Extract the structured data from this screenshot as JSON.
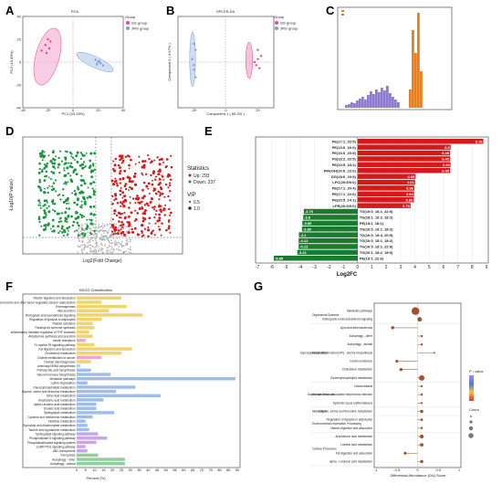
{
  "panels": {
    "a": {
      "label": "A",
      "title": "PCA",
      "xlabel": "PC1 (43.29%)",
      "ylabel": "PC2 (15.85%)",
      "legend_title": "Group",
      "legend": [
        "SG group",
        "JRG group"
      ],
      "colors": [
        "#e6499a",
        "#7b9fd4"
      ]
    },
    "b": {
      "label": "B",
      "title": "OPLDS-DA",
      "xlabel": "Component 1 ( 65.2% )",
      "ylabel": "Component 2 ( 4.67% )",
      "legend_title": "Group",
      "legend": [
        "SG group",
        "JRG group"
      ]
    },
    "c": {
      "label": "C"
    },
    "d": {
      "label": "D",
      "xlabel": "Log2(Fold Change)",
      "ylabel": "-Log10(P value)",
      "stats_title": "Statistics",
      "stats": [
        "Up: 293",
        "Down: 337"
      ],
      "vip_title": "VIP",
      "vip": [
        "0.5",
        "1.0"
      ],
      "colors": {
        "up": "#d7191c",
        "down": "#1a9641",
        "ns": "#b0b0b0"
      }
    },
    "e": {
      "label": "E",
      "xlabel": "Log2FC"
    },
    "f": {
      "label": "F",
      "title": "KEGG Classification",
      "xlabel": "Percent (%)"
    },
    "g": {
      "label": "G",
      "xlabel": "Differential Abundance (DA) Score",
      "legend_title": "P - value",
      "count_title": "Count"
    }
  },
  "chart_data": [
    {
      "panel": "A",
      "type": "scatter",
      "series": [
        {
          "name": "SG group",
          "x": [
            -25,
            -22,
            -20,
            -19,
            -18,
            -21
          ],
          "y": [
            10,
            15,
            20,
            12,
            18,
            8
          ]
        },
        {
          "name": "JRG group",
          "x": [
            18,
            20,
            22,
            24,
            21,
            19
          ],
          "y": [
            2,
            0,
            -1,
            -3,
            1,
            -2
          ]
        }
      ]
    },
    {
      "panel": "B",
      "type": "scatter",
      "series": [
        {
          "name": "SG group",
          "x": [
            18,
            20,
            21,
            22,
            19,
            20
          ],
          "y": [
            0,
            8,
            -4,
            4,
            -2,
            2
          ]
        },
        {
          "name": "JRG group",
          "x": [
            -19,
            -20,
            -21,
            -20,
            -19,
            -20
          ],
          "y": [
            8,
            -5,
            2,
            -2,
            -10,
            12
          ]
        }
      ]
    },
    {
      "panel": "E",
      "type": "bar",
      "xlim": [
        -7,
        9
      ],
      "xticks": [
        -7,
        -6,
        -5,
        -4,
        -3,
        -2,
        -1,
        0,
        1,
        2,
        3,
        4,
        5,
        6,
        7,
        8,
        9
      ],
      "categories": [
        "PE(17:1_20:5)",
        "PE(13:0_16:0)",
        "PE(16:0_20:5)",
        "PS(18:2_20:5)",
        "PE(20:5_18:2)",
        "PMeOH(16:0_22:6)",
        "DG(18:0_20:5)",
        "LPC(20:5/0:0)",
        "PE(17:1_20:4)",
        "PE(17:1_22:6)",
        "PE(20:5_14:1)",
        "LPE(20:5/0:0)",
        "TG(10:0_18:1_22:6)",
        "TG(18:1_18:2_18:2)",
        "PE(18:1_18:1)",
        "TG(16:0_18:1_18:2)",
        "TG(16:0_18:4_20:5)",
        "TG(16:0_18:1_18:2)",
        "TG(16:0_18:1_22:6)",
        "TG(20:1_18:2_18:0)",
        "PE(18:1_22:6)"
      ],
      "values": [
        8.78,
        6.5,
        6.45,
        6.45,
        6.49,
        6.45,
        4.05,
        4.01,
        3.96,
        3.94,
        3.92,
        3.7,
        -3.76,
        -3.8,
        -3.86,
        -3.89,
        -4.1,
        -4.12,
        -4.12,
        -4.21,
        -5.85
      ],
      "labels": [
        "8.78",
        "6.5",
        "6.45",
        "6.45",
        "6.49",
        "6.45",
        "4.05",
        "4.01",
        "3.96",
        "3.94",
        "3.92",
        "3.70",
        "-3.76",
        "-3.8",
        "-3.86",
        "-3.89",
        "-4.1",
        "-4.12",
        "-4.12",
        "-4.21",
        "-5.85"
      ]
    },
    {
      "panel": "F",
      "type": "bar",
      "xlim": [
        0,
        90
      ],
      "xticks": [
        0,
        5,
        10,
        15,
        20,
        25,
        30,
        35,
        40,
        45,
        50,
        55,
        60,
        65,
        70,
        75,
        80,
        85,
        90
      ],
      "categories": [
        "Vitamin digestion and absorption",
        "Endocrine and other factor-regulated calcium reabsorption",
        "Thermogenesis",
        "Bile secretion",
        "Retrograde endocannabinoid signaling",
        "Regulation of lipolysis in adipocytes",
        "Platelet activation",
        "Parathyroid hormone synthesis",
        "Inflammatory mediator regulation of TRP channels",
        "Aldosterone synthesis and secretion",
        "Insulin resistance",
        "Fc epsilon RI signaling pathway",
        "Fat digestion and absorption",
        "Cholesterol metabolism",
        "Choline metabolism in cancer",
        "Ovarian steroidogenesis",
        "Aminoacyl-tRNA biosynthesis",
        "Primary bile acid biosynthesis",
        "Steroid hormone biosynthesis",
        "Metabolic pathways",
        "Lysine degradation",
        "Glycerophospholipid metabolism",
        "Glycine, serine and threonine metabolism",
        "Ether lipid metabolism",
        "Arachidonic acid metabolism",
        "alpha-Linolenic acid metabolism",
        "Linoleic acid metabolism",
        "Sphingolipid metabolism",
        "Cysteine and methionine metabolism",
        "Histidine metabolism",
        "Glyoxylate and dicarboxylate metabolism",
        "Taurine and hypotaurine metabolism",
        "Sphingolipid signaling pathway",
        "Phospholipase D signaling pathway",
        "Phosphatidylinositol signaling system",
        "cGMP-PKG signaling pathway",
        "ABC transporters",
        "Ferroptosis",
        "Autophagy - other",
        "Autophagy - animal"
      ],
      "groups": [
        "Organismal Systems",
        "Organismal Systems",
        "Organismal Systems",
        "Organismal Systems",
        "Organismal Systems",
        "Organismal Systems",
        "Organismal Systems",
        "Organismal Systems",
        "Organismal Systems",
        "Organismal Systems",
        "Human Diseases",
        "Organismal Systems",
        "Organismal Systems",
        "Organismal Systems",
        "Human Diseases",
        "Organismal Systems",
        "Genetic Information Processing",
        "Metabolism",
        "Metabolism",
        "Metabolism",
        "Metabolism",
        "Metabolism",
        "Metabolism",
        "Metabolism",
        "Metabolism",
        "Metabolism",
        "Metabolism",
        "Metabolism",
        "Metabolism",
        "Metabolism",
        "Metabolism",
        "Metabolism",
        "Environmental Information Processing",
        "Environmental Information Processing",
        "Environmental Information Processing",
        "Environmental Information Processing",
        "Environmental Information Processing",
        "Cellular Processes",
        "Cellular Processes",
        "Cellular Processes"
      ],
      "values": [
        25,
        14,
        28,
        18,
        37,
        14,
        9,
        10,
        7,
        9,
        5,
        10,
        31,
        25,
        14,
        8,
        2,
        8,
        19,
        89,
        6,
        33,
        22,
        47,
        15,
        11,
        11,
        21,
        9,
        5,
        6,
        7,
        12,
        17,
        11,
        5,
        6,
        12,
        27,
        27
      ]
    },
    {
      "panel": "G",
      "type": "scatter",
      "xlim": [
        -1.0,
        1.0
      ],
      "categories": [
        "Metabolic pathways",
        "Retrograde endocannabinoid signaling",
        "Lipid and atherosclerosis",
        "Autophagy - other",
        "Autophagy - animal",
        "Glycosylphosphatidylinositol (GPI) - anchor biosynthesis",
        "Insulin resistance",
        "Cholesterol metabolism",
        "Glycerophospholipid metabolism",
        "Leishmaniasis",
        "Kaposi sarcoma - associated herpesvirus infection",
        "Systemic lupus erythematosus",
        "Glycine, serine and threonine metabolism",
        "Regulation of lipolysis in adipocytes",
        "Vitamin digestion and absorption",
        "Arachidonic acid metabolism",
        "Linoleic acid metabolism",
        "Fat digestion and absorption",
        "alpha - Linolenic acid metabolism"
      ],
      "groups": [
        "Organismal Systems",
        "Organismal Systems",
        "Metabolism",
        "Metabolism",
        "Metabolism",
        "Metabolism",
        "Metabolism",
        "Metabolism",
        "Metabolism",
        "Human Diseases",
        "Human Diseases",
        "Human Diseases",
        "Metabolism",
        "Environmental Information Processing",
        "Environmental Information Processing",
        "Cellular Processes",
        "Cellular Processes",
        "Cellular Processes",
        "Cellular Processes"
      ],
      "values": [
        -0.05,
        0.05,
        -0.6,
        0.1,
        0.1,
        0.4,
        -0.5,
        -0.4,
        0.1,
        0.1,
        0.1,
        0.1,
        0.1,
        0.1,
        0.1,
        0.1,
        0.1,
        -0.3,
        0.1
      ],
      "counts": [
        60,
        20,
        10,
        5,
        5,
        3,
        8,
        10,
        30,
        4,
        5,
        4,
        10,
        6,
        5,
        15,
        12,
        8,
        10
      ]
    }
  ]
}
